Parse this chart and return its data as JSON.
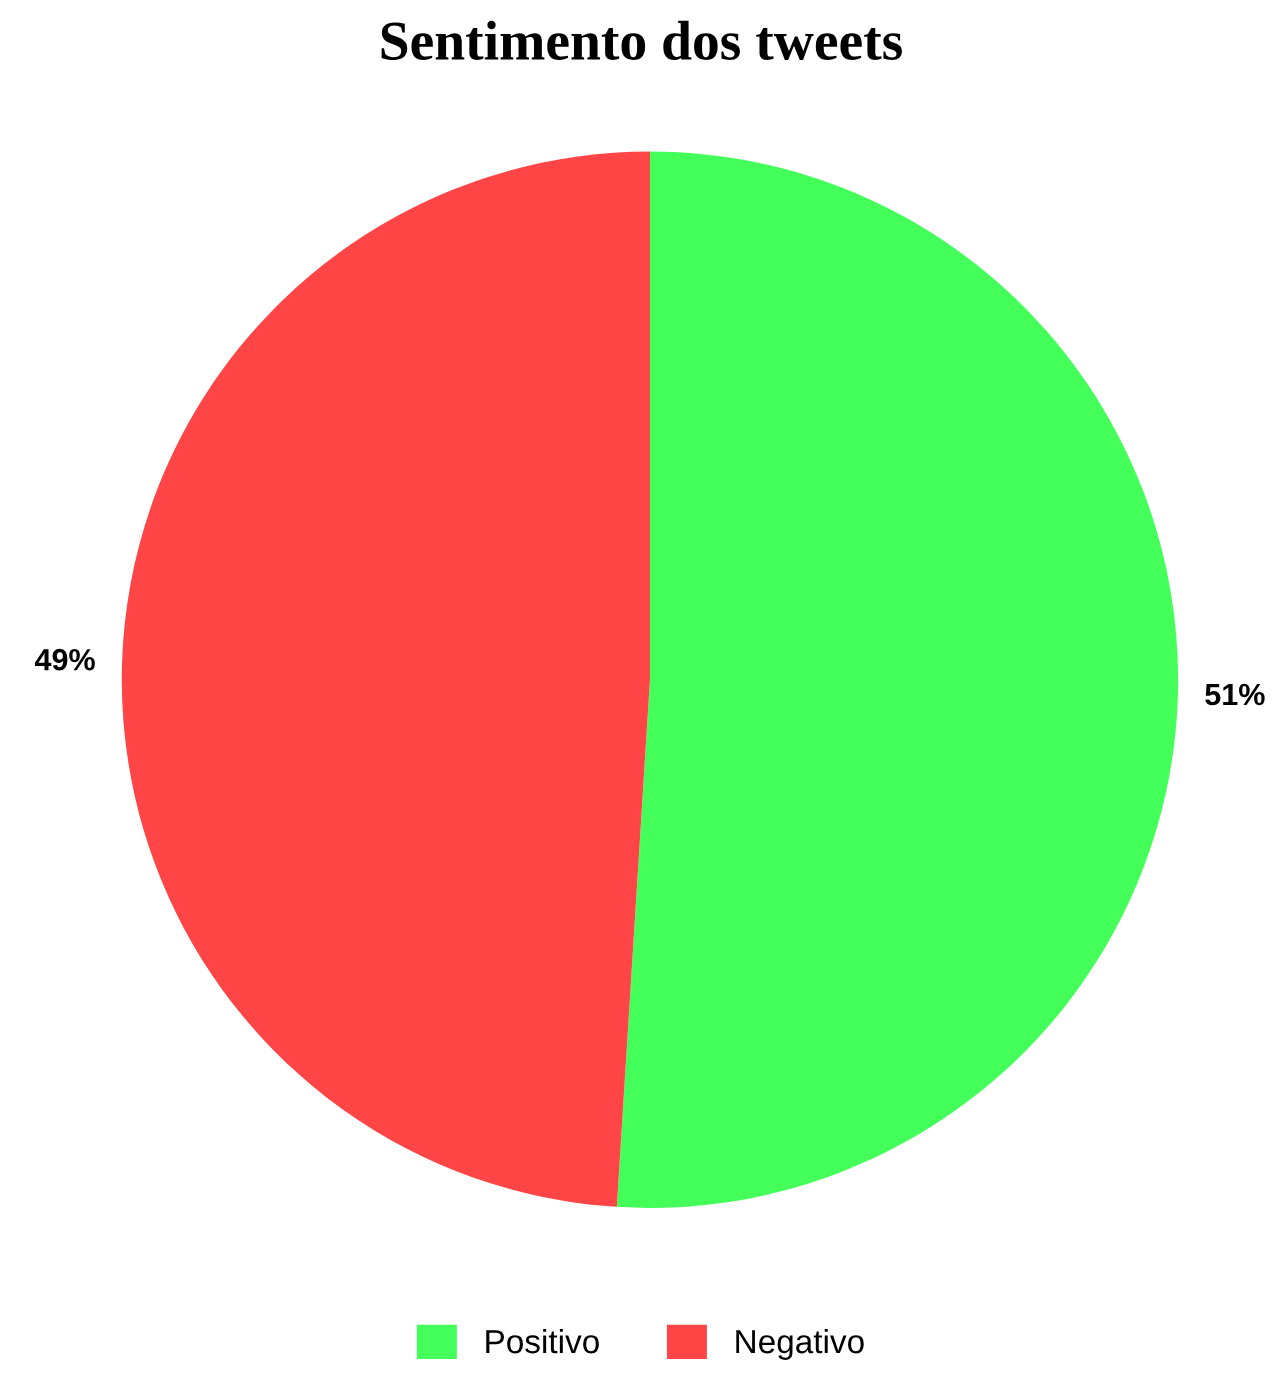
{
  "chart_data": {
    "type": "pie",
    "title": "Sentimento dos tweets",
    "categories": [
      "Positivo",
      "Negativo"
    ],
    "values": [
      51,
      49
    ],
    "colors": [
      "#44ff5a",
      "#ff4545"
    ],
    "value_labels": [
      "51%",
      "49%"
    ],
    "legend": "bottom"
  }
}
